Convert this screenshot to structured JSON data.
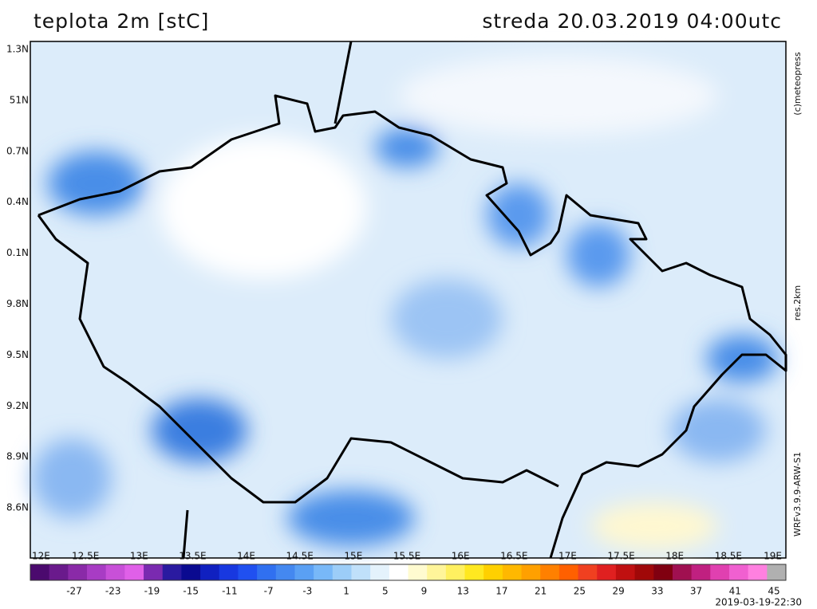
{
  "header": {
    "title": "teplota 2m [stC]",
    "date": "streda 20.03.2019 04:00utc"
  },
  "map": {
    "x_labels": [
      "12E",
      "12.5E",
      "13E",
      "13.5E",
      "14E",
      "14.5E",
      "15E",
      "15.5E",
      "16E",
      "16.5E",
      "17E",
      "17.5E",
      "18E",
      "18.5E",
      "19E"
    ],
    "y_labels": [
      "1.3N",
      "51N",
      "0.7N",
      "0.4N",
      "0.1N",
      "9.8N",
      "9.5N",
      "9.2N",
      "8.9N",
      "8.6N"
    ]
  },
  "side": {
    "copyright": "(c)meteopress",
    "resolution": "res.2km",
    "model": "WRFv3.9.9-ARW-S1"
  },
  "colorbar": {
    "labels": [
      "-27",
      "-23",
      "-19",
      "-15",
      "-11",
      "-7",
      "-3",
      "1",
      "5",
      "9",
      "13",
      "17",
      "21",
      "25",
      "29",
      "33",
      "37",
      "41",
      "45"
    ],
    "colors": [
      "#4b0a6e",
      "#6a1a8c",
      "#8a2aa8",
      "#a83cc4",
      "#c850d8",
      "#e060e8",
      "#7a2ab0",
      "#2a1aa0",
      "#0a0a90",
      "#1020c0",
      "#1838e0",
      "#2050f0",
      "#3070f0",
      "#4488f0",
      "#5aa0f4",
      "#78b8f8",
      "#9ccdf8",
      "#c0e0fa",
      "#e4f2fc",
      "#ffffff",
      "#fffbd0",
      "#fff59a",
      "#fff060",
      "#ffe820",
      "#ffd000",
      "#ffb800",
      "#ffa000",
      "#ff8000",
      "#ff6000",
      "#f04020",
      "#e02020",
      "#c01010",
      "#a00808",
      "#800010",
      "#a01050",
      "#c02080",
      "#e040b0",
      "#f060d0",
      "#ff80e0",
      "#b0b0b0"
    ],
    "run": "2019-03-19-22:30"
  }
}
